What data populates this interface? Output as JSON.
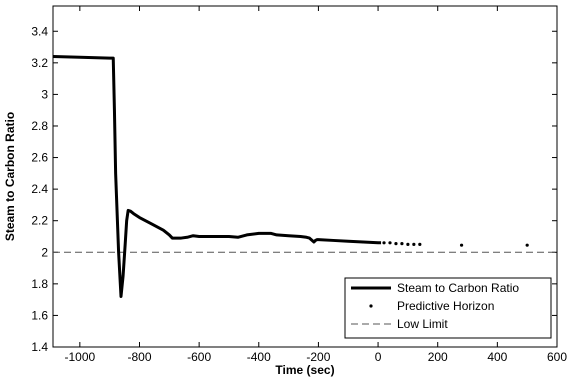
{
  "chart_data": {
    "type": "line",
    "title": "",
    "xlabel": "Time (sec)",
    "ylabel": "Steam to Carbon Ratio",
    "xlim": [
      -1090,
      600
    ],
    "ylim": [
      1.4,
      3.56
    ],
    "xticks": [
      -1000,
      -800,
      -600,
      -400,
      -200,
      0,
      200,
      400,
      600
    ],
    "yticks": [
      1.4,
      1.6,
      1.8,
      2,
      2.2,
      2.4,
      2.6,
      2.8,
      3,
      3.2,
      3.4
    ],
    "xtick_labels": [
      "-1000",
      "-800",
      "-600",
      "-400",
      "-200",
      "0",
      "200",
      "400",
      "600"
    ],
    "ytick_labels": [
      "1.4",
      "1.6",
      "1.8",
      "2",
      "2.2",
      "2.4",
      "2.6",
      "2.8",
      "3",
      "3.2",
      "3.4"
    ],
    "grid": false,
    "legend_position": "bottom-right",
    "series": [
      {
        "name": "Steam to Carbon Ratio",
        "style": "solid",
        "color": "#000000",
        "x": [
          -1090,
          -1000,
          -900,
          -888,
          -884,
          -880,
          -870,
          -862,
          -855,
          -848,
          -843,
          -838,
          -830,
          -820,
          -800,
          -760,
          -720,
          -700,
          -690,
          -680,
          -660,
          -640,
          -620,
          -600,
          -560,
          -500,
          -470,
          -440,
          -400,
          -380,
          -360,
          -340,
          -300,
          -260,
          -240,
          -230,
          -215,
          -210,
          -205,
          -200,
          -150,
          -100,
          -50,
          0,
          10
        ],
        "y": [
          3.24,
          3.235,
          3.23,
          3.23,
          2.9,
          2.5,
          2.0,
          1.72,
          1.85,
          2.05,
          2.2,
          2.265,
          2.26,
          2.245,
          2.22,
          2.18,
          2.14,
          2.11,
          2.09,
          2.09,
          2.09,
          2.095,
          2.105,
          2.1,
          2.1,
          2.1,
          2.095,
          2.11,
          2.12,
          2.12,
          2.12,
          2.11,
          2.105,
          2.1,
          2.095,
          2.09,
          2.065,
          2.075,
          2.08,
          2.08,
          2.075,
          2.07,
          2.065,
          2.06,
          2.06
        ]
      },
      {
        "name": "Predictive Horizon",
        "style": "dots",
        "color": "#000000",
        "x": [
          20,
          40,
          60,
          80,
          100,
          120,
          140,
          280,
          500
        ],
        "y": [
          2.06,
          2.06,
          2.055,
          2.055,
          2.05,
          2.05,
          2.05,
          2.045,
          2.045
        ]
      },
      {
        "name": "Low Limit",
        "style": "dashed",
        "color": "#000000",
        "x": [
          -1090,
          600
        ],
        "y": [
          2.0,
          2.0
        ]
      }
    ]
  }
}
